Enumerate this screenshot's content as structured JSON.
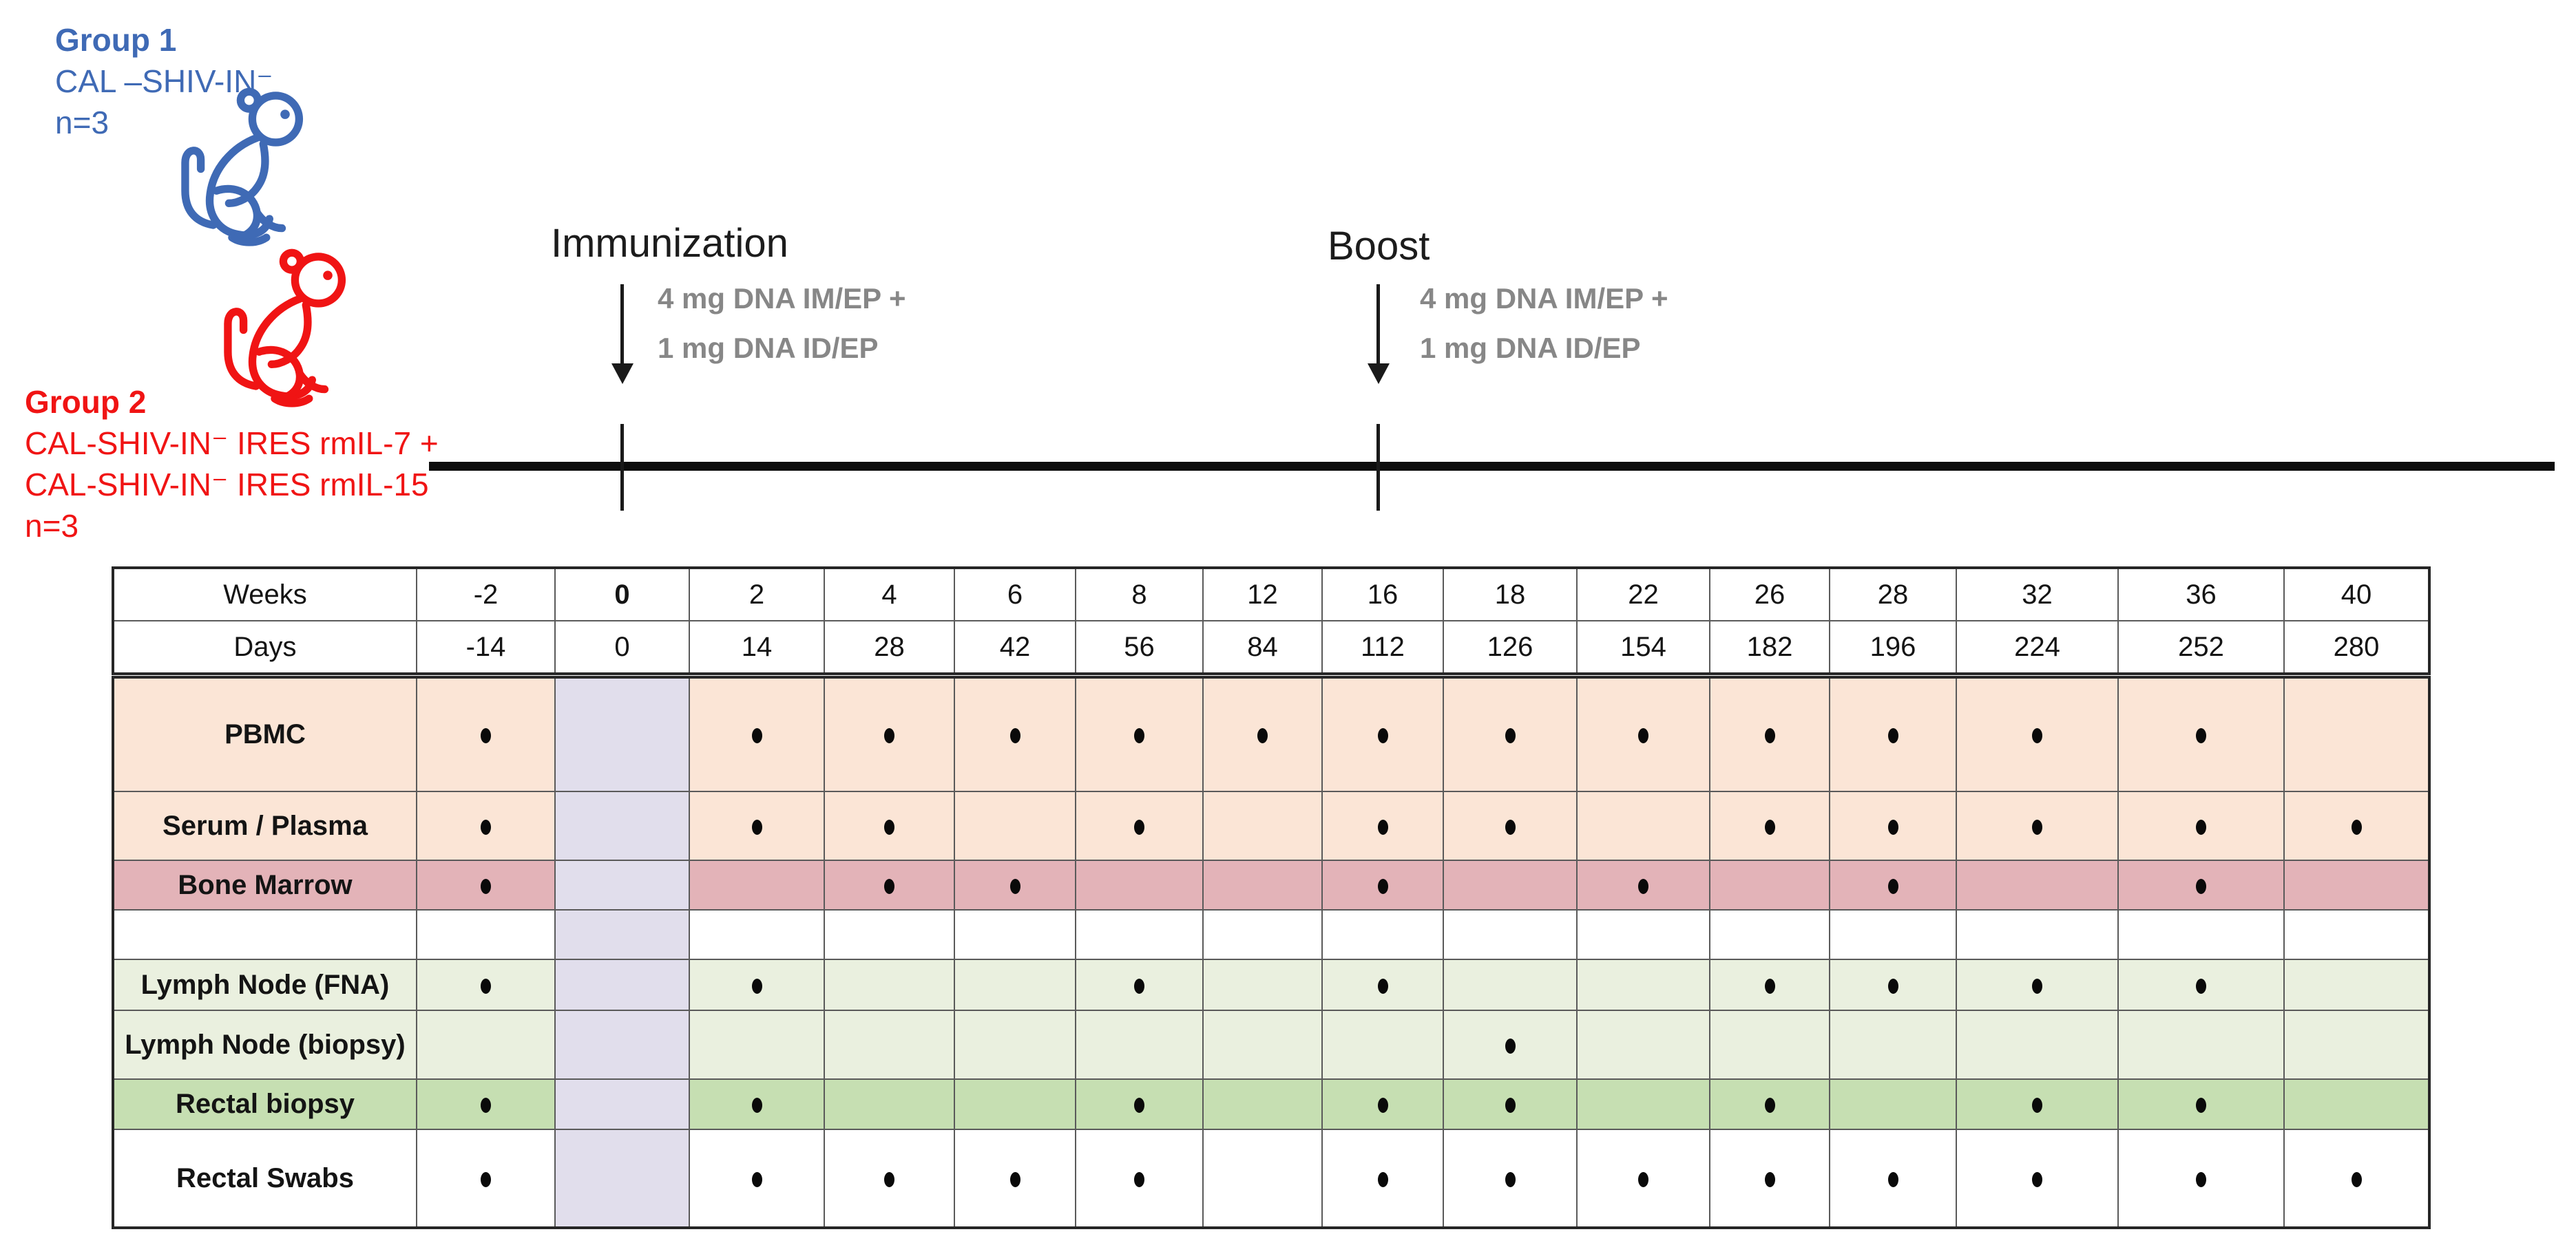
{
  "figure": {
    "groups": [
      {
        "title": "Group 1",
        "lines": [
          "CAL –SHIV-IN⁻",
          "n=3"
        ],
        "color": "#3f6ab5"
      },
      {
        "title": "Group 2",
        "lines": [
          "CAL-SHIV-IN⁻ IRES rmIL-7 +",
          "CAL-SHIV-IN⁻ IRES rmIL-15",
          "n=3"
        ],
        "color": "#f01414"
      }
    ],
    "events": [
      {
        "label": "Immunization",
        "dose_lines": [
          "4 mg DNA IM/EP +",
          "1 mg DNA ID/EP"
        ]
      },
      {
        "label": "Boost",
        "dose_lines": [
          "4 mg DNA IM/EP +",
          "1 mg DNA ID/EP"
        ]
      }
    ],
    "colors": {
      "group1_blue": "#3f6ab5",
      "group2_red": "#f01414",
      "peach": "#fbe5d6",
      "rose": "#e3b3b8",
      "light_green": "#eaf0df",
      "medium_green": "#c6dfb2",
      "week0_lavender": "#e1deec",
      "dose_text_gray": "#878787"
    },
    "table": {
      "weeks": [
        -2,
        0,
        2,
        4,
        6,
        8,
        12,
        16,
        18,
        22,
        26,
        28,
        32,
        36,
        40
      ],
      "header_rows": [
        {
          "label": "Weeks",
          "values": [
            "-2",
            "0",
            "2",
            "4",
            "6",
            "8",
            "12",
            "16",
            "18",
            "22",
            "26",
            "28",
            "32",
            "36",
            "40"
          ],
          "bold_index": 1
        },
        {
          "label": "Days",
          "values": [
            "-14",
            "0",
            "14",
            "28",
            "42",
            "56",
            "84",
            "112",
            "126",
            "154",
            "182",
            "196",
            "224",
            "252",
            "280"
          ],
          "bold_index": -1
        }
      ],
      "highlight_week": 0,
      "rows": [
        {
          "label": "PBMC",
          "color": "peach",
          "dots": [
            -2,
            2,
            4,
            6,
            8,
            12,
            16,
            18,
            22,
            26,
            28,
            32,
            36
          ]
        },
        {
          "label": "Serum / Plasma",
          "color": "peach",
          "dots": [
            -2,
            2,
            4,
            8,
            16,
            18,
            26,
            28,
            32,
            36,
            40
          ]
        },
        {
          "label": "Bone Marrow",
          "color": "rose",
          "dots": [
            -2,
            4,
            6,
            16,
            22,
            28,
            36
          ]
        },
        {
          "label": "",
          "color": "white",
          "dots": []
        },
        {
          "label": "Lymph Node (FNA)",
          "color": "lightgreen",
          "dots": [
            -2,
            2,
            8,
            16,
            26,
            28,
            32,
            36
          ]
        },
        {
          "label": "Lymph Node (biopsy)",
          "color": "lightgreen",
          "dots": [
            18
          ]
        },
        {
          "label": "Rectal biopsy",
          "color": "medgreen",
          "dots": [
            -2,
            2,
            8,
            16,
            18,
            26,
            32,
            36
          ]
        },
        {
          "label": "Rectal Swabs",
          "color": "white",
          "dots": [
            -2,
            2,
            4,
            6,
            8,
            16,
            18,
            22,
            26,
            28,
            32,
            36,
            40
          ]
        }
      ]
    }
  }
}
